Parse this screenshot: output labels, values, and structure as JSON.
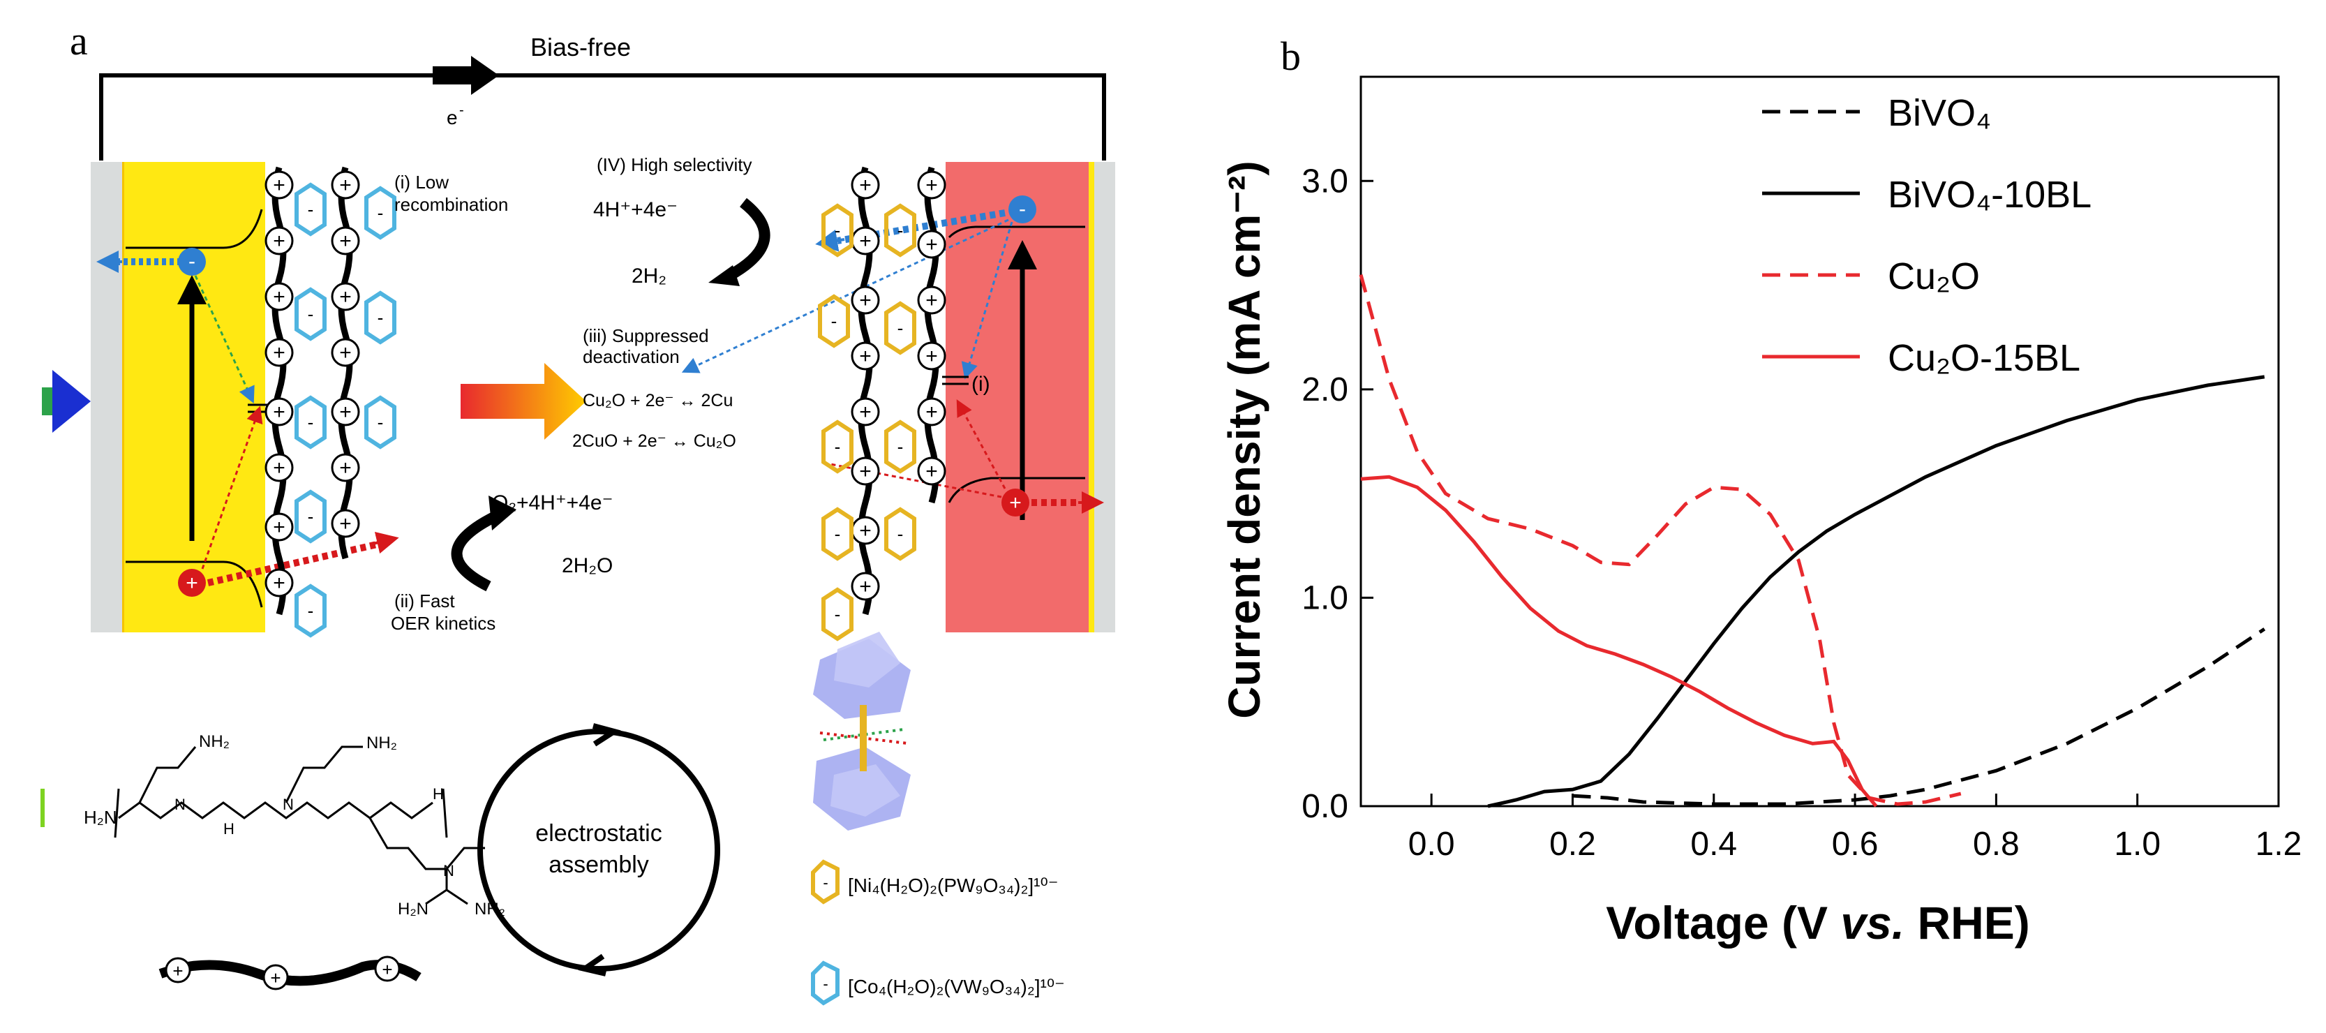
{
  "panel_a": {
    "label": "a",
    "top_label": "Bias-free",
    "electron_label": "e",
    "electron_sup": "-",
    "selectivity": "(IV) High selectivity",
    "h_reaction": "4H⁺+4e⁻",
    "h2": "2H₂",
    "low_recomb_1": "(i) Low",
    "low_recomb_2": "recombination",
    "suppressed_1": "(iii) Suppressed",
    "suppressed_2": "deactivation",
    "cu_reaction_1": "Cu₂O + 2e⁻ ↔ 2Cu",
    "cu_reaction_2": "2CuO + 2e⁻ ↔ Cu₂O",
    "o2_reaction": "O₂+4H⁺+4e⁻",
    "h2o": "2H₂O",
    "fast_1": "(ii) Fast",
    "fast_2": "OER kinetics",
    "interface_label": "(i)",
    "assembly_1": "electrostatic",
    "assembly_2": "assembly",
    "ni_pom": "[Ni₄(H₂O)₂(PW₉O₃₄)₂]¹⁰⁻",
    "co_pom": "[Co₄(H₂O)₂(VW₉O₃₄)₂]¹⁰⁻",
    "pei_nh2": "NH₂",
    "pei_n": "N",
    "pei_h": "H",
    "pei_h2n": "H₂N",
    "plus": "+",
    "minus": "-",
    "colors": {
      "bivo4": "#ffe812",
      "cu2o": "#f26b6b",
      "pom_ni": "#e6b422",
      "pom_co": "#4fb4e0",
      "hole": "#d7191c",
      "electron": "#2f7fd1"
    }
  },
  "panel_b": {
    "label": "b",
    "chart_data": {
      "type": "line",
      "xlabel_1": "Voltage (V ",
      "xlabel_vs": "vs.",
      "xlabel_2": " RHE)",
      "ylabel": "Current density (mA cm⁻²)",
      "xlim": [
        -0.1,
        1.2
      ],
      "ylim": [
        0.0,
        3.5
      ],
      "xticks": [
        "0.0",
        "0.2",
        "0.4",
        "0.6",
        "0.8",
        "1.0",
        "1.2"
      ],
      "xtick_values": [
        0.0,
        0.2,
        0.4,
        0.6,
        0.8,
        1.0,
        1.2
      ],
      "yticks": [
        "0.0",
        "1.0",
        "2.0",
        "3.0"
      ],
      "ytick_values": [
        0.0,
        1.0,
        2.0,
        3.0
      ],
      "legend_position": "top-right",
      "series": [
        {
          "name": "BiVO₄",
          "color": "#000000",
          "dash": true,
          "x": [
            0.2,
            0.25,
            0.3,
            0.4,
            0.5,
            0.6,
            0.65,
            0.7,
            0.8,
            0.9,
            1.0,
            1.1,
            1.18
          ],
          "y": [
            0.05,
            0.04,
            0.02,
            0.01,
            0.01,
            0.03,
            0.05,
            0.08,
            0.17,
            0.3,
            0.47,
            0.67,
            0.85
          ]
        },
        {
          "name": "BiVO₄-10BL",
          "color": "#000000",
          "dash": false,
          "x": [
            0.08,
            0.12,
            0.16,
            0.2,
            0.24,
            0.28,
            0.32,
            0.36,
            0.4,
            0.44,
            0.48,
            0.52,
            0.56,
            0.6,
            0.7,
            0.8,
            0.9,
            1.0,
            1.1,
            1.18
          ],
          "y": [
            0.0,
            0.03,
            0.07,
            0.08,
            0.12,
            0.25,
            0.42,
            0.6,
            0.78,
            0.95,
            1.1,
            1.22,
            1.32,
            1.4,
            1.58,
            1.73,
            1.85,
            1.95,
            2.02,
            2.06
          ]
        },
        {
          "name": "Cu₂O",
          "color": "#e8292e",
          "dash": true,
          "x": [
            -0.1,
            -0.06,
            -0.02,
            0.02,
            0.08,
            0.14,
            0.2,
            0.24,
            0.28,
            0.32,
            0.36,
            0.4,
            0.44,
            0.48,
            0.52,
            0.55,
            0.57,
            0.59,
            0.62,
            0.66,
            0.7,
            0.75
          ],
          "y": [
            2.55,
            2.05,
            1.7,
            1.5,
            1.38,
            1.33,
            1.25,
            1.17,
            1.16,
            1.3,
            1.45,
            1.53,
            1.52,
            1.4,
            1.18,
            0.8,
            0.4,
            0.15,
            0.04,
            0.01,
            0.02,
            0.06
          ]
        },
        {
          "name": "Cu₂O-15BL",
          "color": "#e8292e",
          "dash": false,
          "x": [
            -0.1,
            -0.06,
            -0.02,
            0.02,
            0.06,
            0.1,
            0.14,
            0.18,
            0.22,
            0.26,
            0.3,
            0.34,
            0.38,
            0.42,
            0.46,
            0.5,
            0.54,
            0.57,
            0.59,
            0.61,
            0.63
          ],
          "y": [
            1.57,
            1.58,
            1.53,
            1.42,
            1.27,
            1.1,
            0.95,
            0.84,
            0.77,
            0.73,
            0.68,
            0.62,
            0.55,
            0.47,
            0.4,
            0.34,
            0.3,
            0.31,
            0.22,
            0.08,
            0.0
          ]
        }
      ]
    }
  }
}
